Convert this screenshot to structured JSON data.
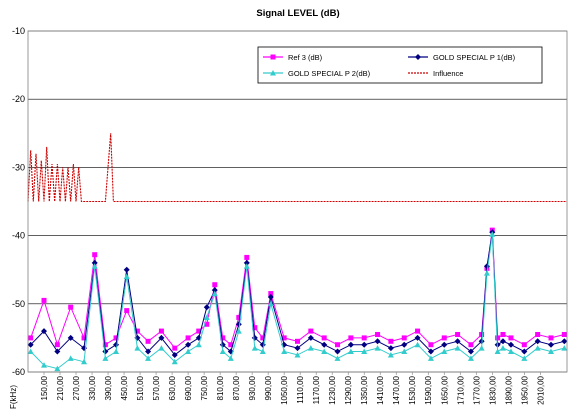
{
  "chart_data": {
    "type": "line",
    "title": "Signal LEVEL (dB)",
    "xlabel": "F(kHz)",
    "ylabel": "",
    "ylim": [
      -60,
      -10
    ],
    "yticks": [
      -10,
      -20,
      -30,
      -40,
      -50,
      -60
    ],
    "xlim": [
      90,
      2110
    ],
    "xtick_values": [
      150,
      210,
      270,
      330,
      390,
      450,
      510,
      570,
      630,
      690,
      750,
      810,
      870,
      930,
      990,
      1050,
      1110,
      1170,
      1230,
      1290,
      1350,
      1410,
      1470,
      1530,
      1590,
      1650,
      1710,
      1770,
      1830,
      1890,
      1950,
      2010
    ],
    "xtick_labels": [
      "150,00",
      "210,00",
      "270,00",
      "330,00",
      "390,00",
      "450,00",
      "510,00",
      "570,00",
      "630,00",
      "690,00",
      "750,00",
      "810,00",
      "870,00",
      "930,00",
      "990,00",
      "1050,00",
      "1110,00",
      "1170,00",
      "1230,00",
      "1290,00",
      "1350,00",
      "1410,00",
      "1470,00",
      "1530,00",
      "1590,00",
      "1650,00",
      "1710,00",
      "1770,00",
      "1830,00",
      "1890,00",
      "1950,00",
      "2010,00"
    ],
    "grid": "horizontal",
    "legend_position": "top-right",
    "series": [
      {
        "name": "Ref 3 (dB)",
        "color": "#ff00ff",
        "marker": "square",
        "x": [
          100,
          150,
          200,
          250,
          300,
          340,
          380,
          420,
          460,
          500,
          540,
          590,
          640,
          690,
          730,
          760,
          790,
          820,
          850,
          880,
          910,
          940,
          970,
          1000,
          1050,
          1100,
          1150,
          1200,
          1250,
          1300,
          1350,
          1400,
          1450,
          1500,
          1550,
          1600,
          1650,
          1700,
          1750,
          1790,
          1810,
          1830,
          1850,
          1870,
          1900,
          1950,
          2000,
          2050,
          2100
        ],
        "y": [
          -55,
          -49.5,
          -56,
          -50.5,
          -55,
          -42.8,
          -56,
          -55,
          -51,
          -54,
          -55.5,
          -54,
          -56.5,
          -55,
          -54,
          -53,
          -47.2,
          -55,
          -56,
          -52,
          -43.2,
          -53.5,
          -55,
          -48.5,
          -55,
          -55.5,
          -54,
          -55,
          -56,
          -55,
          -55,
          -54.5,
          -55.5,
          -55,
          -54,
          -56,
          -55,
          -54.5,
          -56,
          -54.5,
          -44.8,
          -39.2,
          -55,
          -54.5,
          -55,
          -56,
          -54.5,
          -55,
          -54.5
        ]
      },
      {
        "name": "GOLD SPECIAL P 1(dB)",
        "color": "#000080",
        "marker": "diamond",
        "x": [
          100,
          150,
          200,
          250,
          300,
          340,
          380,
          420,
          460,
          500,
          540,
          590,
          640,
          690,
          730,
          760,
          790,
          820,
          850,
          880,
          910,
          940,
          970,
          1000,
          1050,
          1100,
          1150,
          1200,
          1250,
          1300,
          1350,
          1400,
          1450,
          1500,
          1550,
          1600,
          1650,
          1700,
          1750,
          1790,
          1810,
          1830,
          1850,
          1870,
          1900,
          1950,
          2000,
          2050,
          2100
        ],
        "y": [
          -56,
          -54,
          -57,
          -55,
          -56.5,
          -44,
          -57,
          -56,
          -45,
          -55,
          -57,
          -55,
          -57.5,
          -56,
          -55,
          -50.5,
          -48,
          -56,
          -57,
          -53,
          -44,
          -55,
          -56,
          -49,
          -56,
          -56.5,
          -55,
          -56,
          -57,
          -56,
          -56,
          -55.5,
          -56.5,
          -56,
          -55,
          -57,
          -56,
          -55.5,
          -57,
          -55.5,
          -44.5,
          -39.5,
          -56,
          -55.5,
          -56,
          -57,
          -55.5,
          -56,
          -55.5
        ]
      },
      {
        "name": "GOLD SPECIAL P 2(dB)",
        "color": "#33cccc",
        "marker": "triangle",
        "x": [
          100,
          150,
          200,
          250,
          300,
          340,
          380,
          420,
          460,
          500,
          540,
          590,
          640,
          690,
          730,
          760,
          790,
          820,
          850,
          880,
          910,
          940,
          970,
          1000,
          1050,
          1100,
          1150,
          1200,
          1250,
          1300,
          1350,
          1400,
          1450,
          1500,
          1550,
          1600,
          1650,
          1700,
          1750,
          1790,
          1810,
          1830,
          1850,
          1870,
          1900,
          1950,
          2000,
          2050,
          2100
        ],
        "y": [
          -57,
          -59,
          -59.5,
          -58,
          -58.5,
          -44.5,
          -58,
          -57,
          -46,
          -56.5,
          -58,
          -56.5,
          -58.5,
          -57,
          -56,
          -52,
          -48.5,
          -57,
          -58,
          -54,
          -44.5,
          -56.5,
          -57,
          -50,
          -57,
          -57.5,
          -56.5,
          -57,
          -58,
          -57,
          -57,
          -56.5,
          -57.5,
          -57,
          -56,
          -58,
          -57,
          -56.5,
          -58,
          -56.5,
          -45.5,
          -39.8,
          -57,
          -56.5,
          -57,
          -58,
          -56.5,
          -57,
          -56.5
        ]
      },
      {
        "name": "Influence",
        "color": "#cc0000",
        "marker": "none",
        "dashed": true,
        "x": [
          90,
          100,
          110,
          120,
          130,
          140,
          150,
          160,
          170,
          180,
          190,
          200,
          210,
          220,
          230,
          240,
          250,
          260,
          270,
          280,
          290,
          300,
          310,
          320,
          330,
          340,
          350,
          360,
          370,
          380,
          390,
          400,
          410,
          420,
          2110
        ],
        "y": [
          -35,
          -27.5,
          -35,
          -28,
          -35,
          -29,
          -35,
          -27,
          -35,
          -29.5,
          -35,
          -29.5,
          -35,
          -30,
          -35,
          -30,
          -35,
          -29.5,
          -35,
          -30,
          -35,
          -35,
          -35,
          -35,
          -35,
          -35,
          -35,
          -35,
          -35,
          -35,
          -30,
          -25,
          -35,
          -35,
          -35
        ]
      }
    ]
  }
}
